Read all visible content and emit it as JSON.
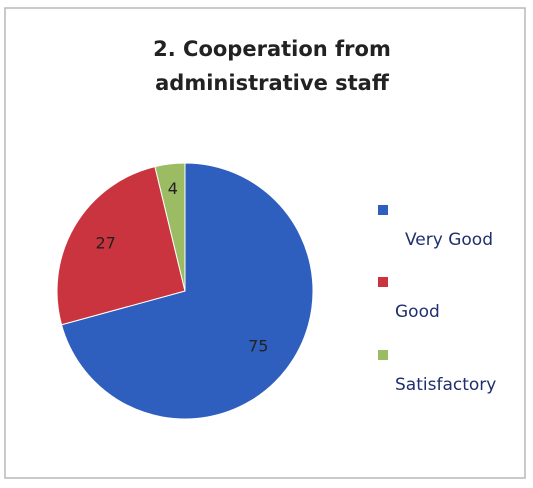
{
  "chart_data": {
    "type": "pie",
    "title": [
      "2. Cooperation from",
      "administrative staff"
    ],
    "categories": [
      "Very Good",
      "Good",
      "Satisfactory"
    ],
    "values": [
      75,
      27,
      4
    ],
    "colors": [
      "#2f5fbe",
      "#c9343f",
      "#9cbc63"
    ],
    "legend": "right"
  }
}
